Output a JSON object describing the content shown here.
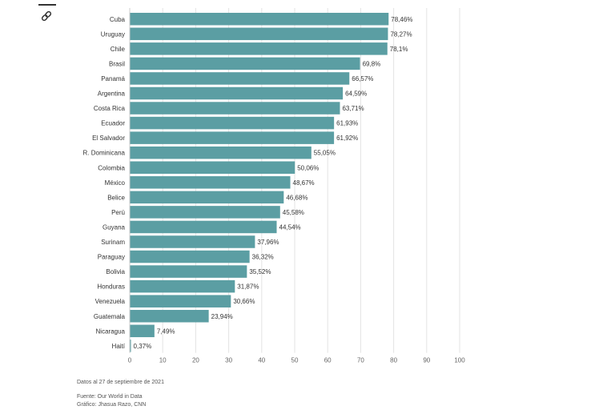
{
  "link_icon": "link-icon",
  "colors": {
    "bar": "#5b9ea3",
    "grid": "#e3e3e3",
    "text": "#333333"
  },
  "chart_data": {
    "type": "bar",
    "orientation": "horizontal",
    "title": "",
    "xlabel": "",
    "ylabel": "",
    "categories": [
      "Cuba",
      "Uruguay",
      "Chile",
      "Brasil",
      "Panamá",
      "Argentina",
      "Costa Rica",
      "Ecuador",
      "El Salvador",
      "R. Dominicana",
      "Colombia",
      "México",
      "Belice",
      "Perú",
      "Guyana",
      "Surinam",
      "Paraguay",
      "Bolivia",
      "Honduras",
      "Venezuela",
      "Guatemala",
      "Nicaragua",
      "Haití"
    ],
    "values": [
      78.46,
      78.27,
      78.1,
      69.8,
      66.57,
      64.59,
      63.71,
      61.93,
      61.92,
      55.05,
      50.06,
      48.67,
      46.68,
      45.58,
      44.54,
      37.96,
      36.32,
      35.52,
      31.87,
      30.66,
      23.94,
      7.49,
      0.37
    ],
    "value_labels": [
      "78,46%",
      "78,27%",
      "78,1%",
      "69,8%",
      "66,57%",
      "64,59%",
      "63,71%",
      "61,93%",
      "61,92%",
      "55,05%",
      "50,06%",
      "48,67%",
      "46,68%",
      "45,58%",
      "44,54%",
      "37,96%",
      "36,32%",
      "35,52%",
      "31,87%",
      "30,66%",
      "23,94%",
      "7,49%",
      "0,37%"
    ],
    "xlim": [
      0,
      100
    ],
    "xticks": [
      0,
      10,
      20,
      30,
      40,
      50,
      60,
      70,
      80,
      90,
      100
    ],
    "grid": true
  },
  "footer": {
    "date_note": "Datos al 27 de septiembre de 2021",
    "source": "Fuente: Our World in Data",
    "credit": "Gráfico: Jhasua Razo, CNN"
  }
}
